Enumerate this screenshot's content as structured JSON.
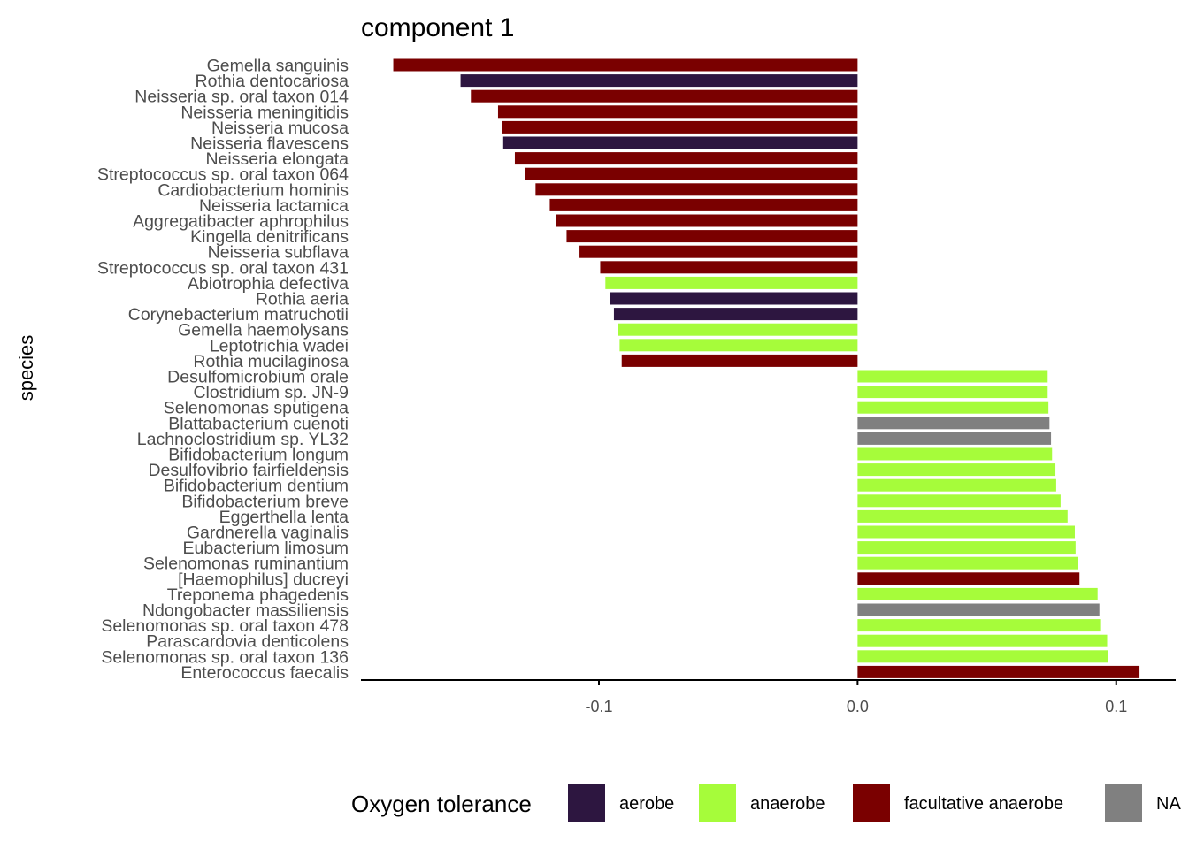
{
  "chart_data": {
    "type": "bar",
    "orientation": "horizontal",
    "title": "component 1",
    "ylabel": "species",
    "xlabel": "",
    "xlim": [
      -0.192,
      0.123
    ],
    "xticks": [
      -0.1,
      0.0,
      0.1
    ],
    "xtick_labels": [
      "-0.1",
      "0.0",
      "0.1"
    ],
    "legend": {
      "title": "Oxygen tolerance",
      "position": "bottom",
      "entries": [
        {
          "key": "aerobe",
          "label": "aerobe",
          "color": "#2d1640"
        },
        {
          "key": "anaerobe",
          "label": "anaerobe",
          "color": "#a6fc3a"
        },
        {
          "key": "facultative anaerobe",
          "label": "facultative anaerobe",
          "color": "#7a0000"
        },
        {
          "key": "NA",
          "label": "NA",
          "color": "#808080"
        }
      ]
    },
    "bars": [
      {
        "label": "Gemella sanguinis",
        "value": -0.1795,
        "group": "facultative anaerobe"
      },
      {
        "label": "Rothia dentocariosa",
        "value": -0.1535,
        "group": "aerobe"
      },
      {
        "label": "Neisseria sp. oral taxon 014",
        "value": -0.1495,
        "group": "facultative anaerobe"
      },
      {
        "label": "Neisseria meningitidis",
        "value": -0.139,
        "group": "facultative anaerobe"
      },
      {
        "label": "Neisseria mucosa",
        "value": -0.1375,
        "group": "facultative anaerobe"
      },
      {
        "label": "Neisseria flavescens",
        "value": -0.137,
        "group": "aerobe"
      },
      {
        "label": "Neisseria elongata",
        "value": -0.1325,
        "group": "facultative anaerobe"
      },
      {
        "label": "Streptococcus sp. oral taxon 064",
        "value": -0.1285,
        "group": "facultative anaerobe"
      },
      {
        "label": "Cardiobacterium hominis",
        "value": -0.1245,
        "group": "facultative anaerobe"
      },
      {
        "label": "Neisseria lactamica",
        "value": -0.119,
        "group": "facultative anaerobe"
      },
      {
        "label": "Aggregatibacter aphrophilus",
        "value": -0.1165,
        "group": "facultative anaerobe"
      },
      {
        "label": "Kingella denitrificans",
        "value": -0.1125,
        "group": "facultative anaerobe"
      },
      {
        "label": "Neisseria subflava",
        "value": -0.1075,
        "group": "facultative anaerobe"
      },
      {
        "label": "Streptococcus sp. oral taxon 431",
        "value": -0.0995,
        "group": "facultative anaerobe"
      },
      {
        "label": "Abiotrophia defectiva",
        "value": -0.0975,
        "group": "anaerobe"
      },
      {
        "label": "Rothia aeria",
        "value": -0.0958,
        "group": "aerobe"
      },
      {
        "label": "Corynebacterium matruchotii",
        "value": -0.0942,
        "group": "aerobe"
      },
      {
        "label": "Gemella haemolysans",
        "value": -0.0928,
        "group": "anaerobe"
      },
      {
        "label": "Leptotrichia wadei",
        "value": -0.092,
        "group": "anaerobe"
      },
      {
        "label": "Rothia mucilaginosa",
        "value": -0.0912,
        "group": "facultative anaerobe"
      },
      {
        "label": "Desulfomicrobium orale",
        "value": 0.0735,
        "group": "anaerobe"
      },
      {
        "label": "Clostridium sp. JN-9",
        "value": 0.0735,
        "group": "anaerobe"
      },
      {
        "label": "Selenomonas sputigena",
        "value": 0.0738,
        "group": "anaerobe"
      },
      {
        "label": "Blattabacterium cuenoti",
        "value": 0.0742,
        "group": "NA"
      },
      {
        "label": "Lachnoclostridium sp. YL32",
        "value": 0.0748,
        "group": "NA"
      },
      {
        "label": "Bifidobacterium longum",
        "value": 0.0752,
        "group": "anaerobe"
      },
      {
        "label": "Desulfovibrio fairfieldensis",
        "value": 0.0765,
        "group": "anaerobe"
      },
      {
        "label": "Bifidobacterium dentium",
        "value": 0.0768,
        "group": "anaerobe"
      },
      {
        "label": "Bifidobacterium breve",
        "value": 0.0785,
        "group": "anaerobe"
      },
      {
        "label": "Eggerthella lenta",
        "value": 0.0812,
        "group": "anaerobe"
      },
      {
        "label": "Gardnerella vaginalis",
        "value": 0.084,
        "group": "anaerobe"
      },
      {
        "label": "Eubacterium limosum",
        "value": 0.0843,
        "group": "anaerobe"
      },
      {
        "label": "Selenomonas ruminantium",
        "value": 0.0852,
        "group": "anaerobe"
      },
      {
        "label": "[Haemophilus] ducreyi",
        "value": 0.0858,
        "group": "facultative anaerobe"
      },
      {
        "label": "Treponema phagedenis",
        "value": 0.0928,
        "group": "anaerobe"
      },
      {
        "label": "Ndongobacter massiliensis",
        "value": 0.0935,
        "group": "NA"
      },
      {
        "label": "Selenomonas sp. oral taxon 478",
        "value": 0.0938,
        "group": "anaerobe"
      },
      {
        "label": "Parascardovia denticolens",
        "value": 0.0965,
        "group": "anaerobe"
      },
      {
        "label": "Selenomonas sp. oral taxon 136",
        "value": 0.097,
        "group": "anaerobe"
      },
      {
        "label": "Enterococcus faecalis",
        "value": 0.109,
        "group": "facultative anaerobe"
      }
    ],
    "grid": false
  }
}
